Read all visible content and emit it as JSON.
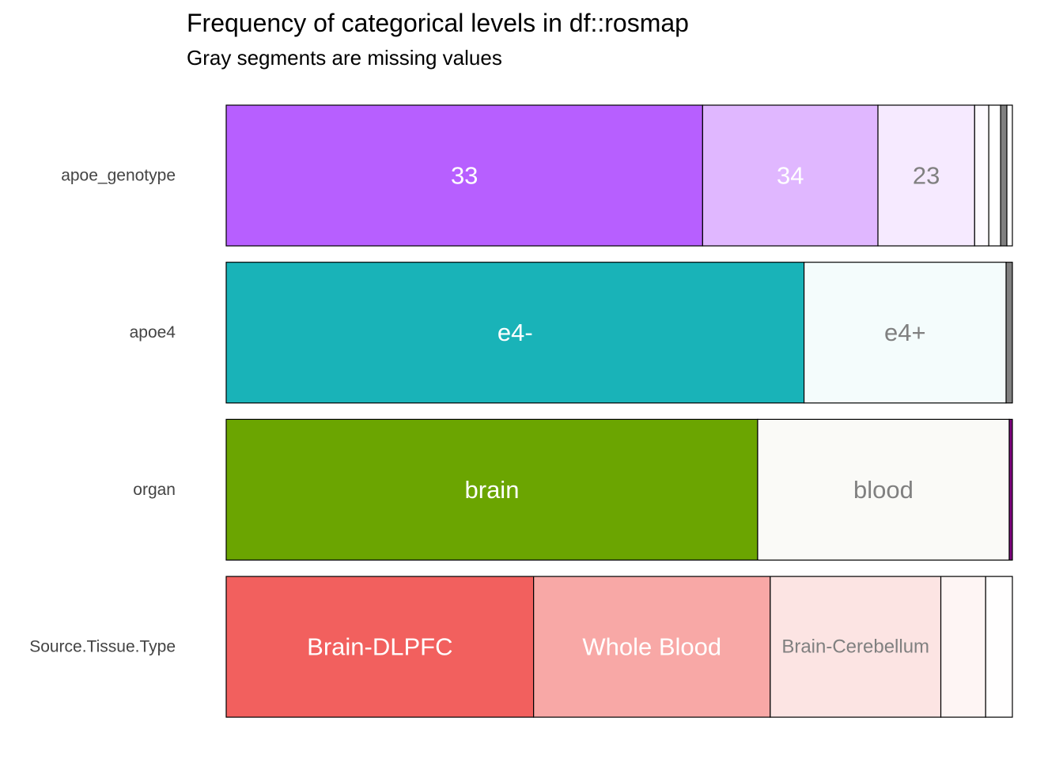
{
  "chart_data": {
    "type": "bar",
    "orientation": "horizontal",
    "stacked": "proportional",
    "title": "Frequency of categorical levels in df::rosmap",
    "subtitle": "Gray segments are missing values",
    "xlabel": "",
    "ylabel": "",
    "grid": false,
    "legend": "none",
    "xlim": [
      0,
      1
    ],
    "rows": [
      {
        "label": "apoe_genotype",
        "segments": [
          {
            "level": "33",
            "value": 0.606,
            "color": "#B75FFF",
            "label_color": "#FFFFFF"
          },
          {
            "level": "34",
            "value": 0.223,
            "color": "#E0B7FF",
            "label_color": "#FFFFFF"
          },
          {
            "level": "23",
            "value": 0.123,
            "color": "#F6EAFF",
            "label_color": "#808080"
          },
          {
            "level": "",
            "value": 0.018,
            "color": "#FDFAFF",
            "label_color": "#808080"
          },
          {
            "level": "",
            "value": 0.015,
            "color": "#FFFFFF",
            "label_color": "#808080"
          },
          {
            "level": "",
            "value": 0.008,
            "color": "#808080",
            "label_color": "#808080",
            "missing": true
          },
          {
            "level": "",
            "value": 0.007,
            "color": "#FFFFFF",
            "label_color": "#808080"
          }
        ]
      },
      {
        "label": "apoe4",
        "segments": [
          {
            "level": "e4-",
            "value": 0.735,
            "color": "#19B3B8",
            "label_color": "#FFFFFF"
          },
          {
            "level": "e4+",
            "value": 0.257,
            "color": "#F4FCFC",
            "label_color": "#808080"
          },
          {
            "level": "",
            "value": 0.008,
            "color": "#808080",
            "label_color": "#808080",
            "missing": true
          }
        ]
      },
      {
        "label": "organ",
        "segments": [
          {
            "level": "brain",
            "value": 0.676,
            "color": "#6BA501",
            "label_color": "#FFFFFF"
          },
          {
            "level": "blood",
            "value": 0.32,
            "color": "#FAFAF7",
            "label_color": "#808080"
          },
          {
            "level": "",
            "value": 0.004,
            "color": "#800080",
            "label_color": "#808080"
          }
        ]
      },
      {
        "label": "Source.Tissue.Type",
        "segments": [
          {
            "level": "Brain-DLPFC",
            "value": 0.391,
            "color": "#F2605E",
            "label_color": "#FFFFFF"
          },
          {
            "level": "Whole Blood",
            "value": 0.301,
            "color": "#F8A8A6",
            "label_color": "#FFFFFF"
          },
          {
            "level": "Brain-Cerebellum",
            "value": 0.217,
            "color": "#FCE4E3",
            "label_color": "#808080",
            "small": true
          },
          {
            "level": "",
            "value": 0.057,
            "color": "#FEF5F4",
            "label_color": "#808080"
          },
          {
            "level": "",
            "value": 0.034,
            "color": "#FFFEFE",
            "label_color": "#808080"
          }
        ]
      }
    ]
  }
}
